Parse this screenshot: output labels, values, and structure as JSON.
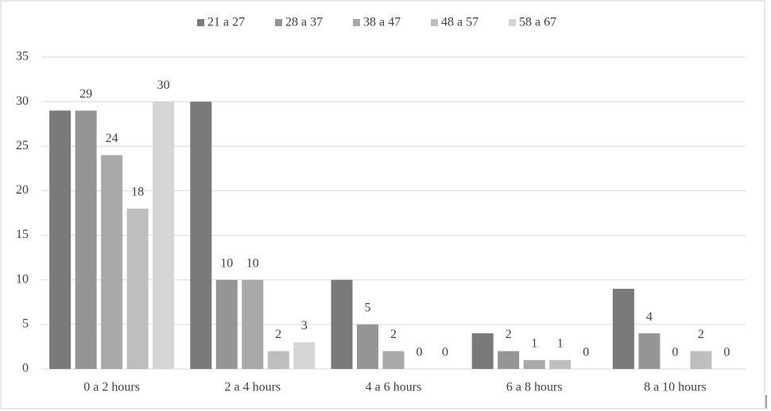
{
  "chart_data": {
    "type": "bar",
    "categories": [
      "0 a 2 hours",
      "2 a 4 hours",
      "4 a 6 hours",
      "6 a 8 hours",
      "8 a 10 hours"
    ],
    "series": [
      {
        "name": "21 a 27",
        "color": "#7a7a7a",
        "values": [
          29,
          30,
          10,
          4,
          9
        ],
        "show_labels": false
      },
      {
        "name": "28 a 37",
        "color": "#959595",
        "values": [
          29,
          10,
          5,
          2,
          4
        ],
        "show_labels": true
      },
      {
        "name": "38 a 47",
        "color": "#a9a9a9",
        "values": [
          24,
          10,
          2,
          1,
          0
        ],
        "show_labels": true
      },
      {
        "name": "48 a 57",
        "color": "#bebebe",
        "values": [
          18,
          2,
          0,
          1,
          2
        ],
        "show_labels": true
      },
      {
        "name": "58 a 67",
        "color": "#d5d5d5",
        "values": [
          30,
          3,
          0,
          0,
          0
        ],
        "show_labels": true
      }
    ],
    "ylim": [
      0,
      35
    ],
    "yticks": [
      0,
      5,
      10,
      15,
      20,
      25,
      30,
      35
    ],
    "grid": true,
    "legend": "top"
  }
}
